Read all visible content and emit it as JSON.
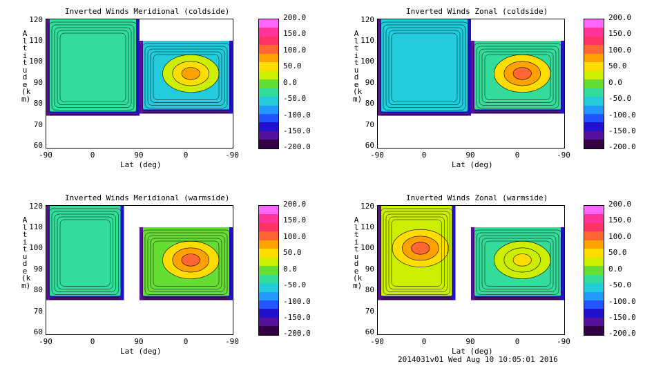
{
  "panels": [
    {
      "title": "Inverted Winds Meridional (coldside)",
      "xlabel": "Lat (deg)",
      "ylabel": "Altitude (km)",
      "xticks": [
        "-90",
        "0",
        "90",
        "0",
        "-90"
      ],
      "yticks": [
        "120",
        "110",
        "100",
        "90",
        "80",
        "70",
        "60"
      ]
    },
    {
      "title": "Inverted Winds Zonal (coldside)",
      "xlabel": "Lat (deg)",
      "ylabel": "Altitude (km)",
      "xticks": [
        "-90",
        "0",
        "90",
        "0",
        "-90"
      ],
      "yticks": [
        "120",
        "110",
        "100",
        "90",
        "80",
        "70",
        "60"
      ]
    },
    {
      "title": "Inverted Winds Meridional (warmside)",
      "xlabel": "Lat (deg)",
      "ylabel": "Altitude (km)",
      "xticks": [
        "-90",
        "0",
        "90",
        "0",
        "-90"
      ],
      "yticks": [
        "120",
        "110",
        "100",
        "90",
        "80",
        "70",
        "60"
      ]
    },
    {
      "title": "Inverted Winds Zonal (warmside)",
      "xlabel": "Lat (deg)",
      "ylabel": "Altitude (km)",
      "xticks": [
        "-90",
        "0",
        "90",
        "0",
        "-90"
      ],
      "yticks": [
        "120",
        "110",
        "100",
        "90",
        "80",
        "70",
        "60"
      ]
    }
  ],
  "colorbar": {
    "ticks": [
      "200.0",
      "150.0",
      "100.0",
      "50.0",
      "0.0",
      "-50.0",
      "-100.0",
      "-150.0",
      "-200.0"
    ],
    "colors": [
      "#ff66ff",
      "#ff3399",
      "#ff3366",
      "#ff6633",
      "#ffa200",
      "#ffdd00",
      "#ccee00",
      "#66dd33",
      "#33dd99",
      "#22ccdd",
      "#2299ff",
      "#2255ff",
      "#2211cc",
      "#551199",
      "#330044"
    ]
  },
  "footer": "2014031v01 Wed Aug 10 10:05:01 2016",
  "chart_data": [
    {
      "type": "heatmap",
      "title": "Inverted Winds Meridional (coldside)",
      "xlabel": "Lat (deg)",
      "ylabel": "Altitude (km)",
      "x_tick_labels": [
        "-90",
        "0",
        "90",
        "0",
        "-90"
      ],
      "ylim": [
        60,
        120
      ],
      "colorbar_range": [
        -200,
        200
      ],
      "regions": [
        {
          "side": "left",
          "lat_range": [
            -90,
            90
          ],
          "alt_range": [
            75,
            120
          ],
          "dominant_value": -20
        },
        {
          "side": "right",
          "lat_range": [
            90,
            -90
          ],
          "alt_range": [
            76,
            110
          ],
          "dominant_value": -60,
          "peak_value": 80
        }
      ]
    },
    {
      "type": "heatmap",
      "title": "Inverted Winds Zonal (coldside)",
      "xlabel": "Lat (deg)",
      "ylabel": "Altitude (km)",
      "x_tick_labels": [
        "-90",
        "0",
        "90",
        "0",
        "-90"
      ],
      "ylim": [
        60,
        120
      ],
      "colorbar_range": [
        -200,
        200
      ],
      "regions": [
        {
          "side": "left",
          "lat_range": [
            -90,
            90
          ],
          "alt_range": [
            75,
            120
          ],
          "dominant_value": -40
        },
        {
          "side": "right",
          "lat_range": [
            90,
            -90
          ],
          "alt_range": [
            76,
            110
          ],
          "dominant_value": -20,
          "peak_value": 120
        }
      ]
    },
    {
      "type": "heatmap",
      "title": "Inverted Winds Meridional (warmside)",
      "xlabel": "Lat (deg)",
      "ylabel": "Altitude (km)",
      "x_tick_labels": [
        "-90",
        "0",
        "90",
        "0",
        "-90"
      ],
      "ylim": [
        60,
        120
      ],
      "colorbar_range": [
        -200,
        200
      ],
      "regions": [
        {
          "side": "left",
          "lat_range": [
            -90,
            60
          ],
          "alt_range": [
            76,
            120
          ],
          "dominant_value": -20
        },
        {
          "side": "right",
          "lat_range": [
            90,
            -90
          ],
          "alt_range": [
            76,
            110
          ],
          "dominant_value": -10,
          "peak_value": 120
        }
      ]
    },
    {
      "type": "heatmap",
      "title": "Inverted Winds Zonal (warmside)",
      "xlabel": "Lat (deg)",
      "ylabel": "Altitude (km)",
      "x_tick_labels": [
        "-90",
        "0",
        "90",
        "0",
        "-90"
      ],
      "ylim": [
        60,
        120
      ],
      "colorbar_range": [
        -200,
        200
      ],
      "regions": [
        {
          "side": "left",
          "lat_range": [
            -90,
            60
          ],
          "alt_range": [
            76,
            120
          ],
          "dominant_value": 20,
          "peak_value": 100
        },
        {
          "side": "right",
          "lat_range": [
            90,
            -90
          ],
          "alt_range": [
            76,
            110
          ],
          "dominant_value": -20,
          "peak_value": 50
        }
      ]
    }
  ]
}
